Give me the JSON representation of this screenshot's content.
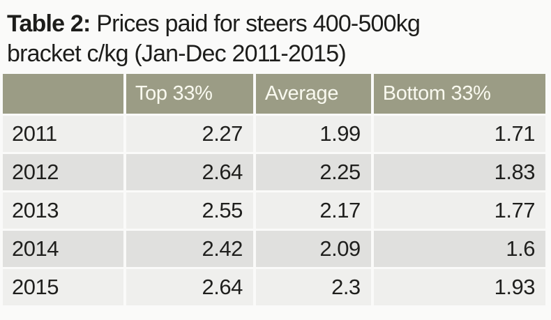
{
  "title": {
    "prefix": "Table 2:",
    "line1": " Prices paid for steers 400-500kg",
    "line2": "bracket c/kg (Jan-Dec 2011-2015)"
  },
  "table": {
    "headers": [
      "",
      "Top 33%",
      "Average",
      "Bottom 33%"
    ],
    "rows": [
      {
        "year": "2011",
        "top": "2.27",
        "average": "1.99",
        "bottom": "1.71"
      },
      {
        "year": "2012",
        "top": "2.64",
        "average": "2.25",
        "bottom": "1.83"
      },
      {
        "year": "2013",
        "top": "2.55",
        "average": "2.17",
        "bottom": "1.77"
      },
      {
        "year": "2014",
        "top": "2.42",
        "average": "2.09",
        "bottom": "1.6"
      },
      {
        "year": "2015",
        "top": "2.64",
        "average": "2.3",
        "bottom": "1.93"
      }
    ]
  },
  "colors": {
    "page_bg": "#fafaf9",
    "header_bg": "#9b9c85",
    "header_text": "#f9f9ef",
    "row_light": "#efefed",
    "row_dark": "#e0e0de",
    "body_text": "#1f1f1d"
  },
  "chart_data": {
    "type": "table",
    "title": "Table 2: Prices paid for steers 400-500kg bracket c/kg (Jan-Dec 2011-2015)",
    "columns": [
      "",
      "Top 33%",
      "Average",
      "Bottom 33%"
    ],
    "rows": [
      [
        "2011",
        2.27,
        1.99,
        1.71
      ],
      [
        "2012",
        2.64,
        2.25,
        1.83
      ],
      [
        "2013",
        2.55,
        2.17,
        1.77
      ],
      [
        "2014",
        2.42,
        2.09,
        1.6
      ],
      [
        "2015",
        2.64,
        2.3,
        1.93
      ]
    ],
    "layout_hints": {
      "value_alignment": "right",
      "zebra_striping": true,
      "header_style": "olive background, white text"
    }
  }
}
